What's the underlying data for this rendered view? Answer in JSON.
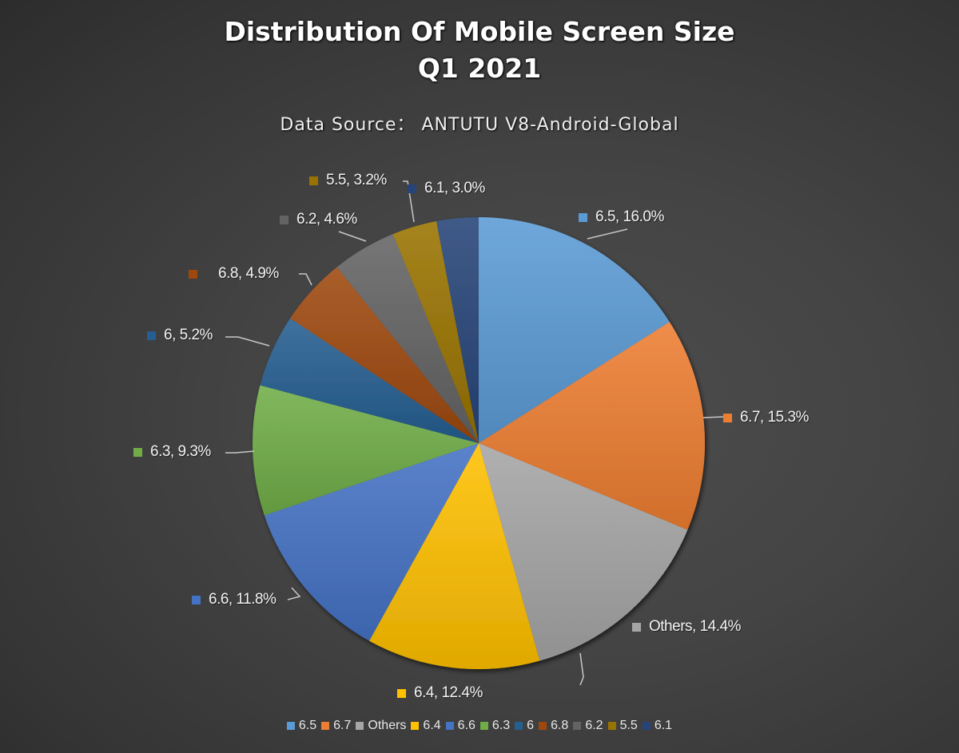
{
  "chart_data": {
    "type": "pie",
    "title": "Distribution Of Mobile Screen Size",
    "title_line2": "Q1 2021",
    "subtitle": "Data Source： ANTUTU V8-Android-Global",
    "categories": [
      "6.5",
      "6.7",
      "Others",
      "6.4",
      "6.6",
      "6.3",
      "6",
      "6.8",
      "6.2",
      "5.5",
      "6.1"
    ],
    "values": [
      16.0,
      15.3,
      14.4,
      12.4,
      11.8,
      9.3,
      5.2,
      4.9,
      4.6,
      3.2,
      3.0
    ],
    "colors": [
      "#5b9bd5",
      "#ed7d31",
      "#a5a5a5",
      "#ffc000",
      "#4472c4",
      "#70ad47",
      "#255e91",
      "#9e480e",
      "#636363",
      "#997300",
      "#264478"
    ],
    "data_labels": [
      "6.5, 16.0%",
      "6.7, 15.3%",
      "Others, 14.4%",
      "6.4, 12.4%",
      "6.6, 11.8%",
      "6.3, 9.3%",
      "6, 5.2%",
      "6.8, 4.9%",
      "6.2, 4.6%",
      "5.5, 3.2%",
      "6.1, 3.0%"
    ],
    "legend_position": "bottom",
    "unit": "%"
  },
  "legend": [
    {
      "label": "6.5",
      "color": "#5b9bd5"
    },
    {
      "label": "6.7",
      "color": "#ed7d31"
    },
    {
      "label": "Others",
      "color": "#a5a5a5"
    },
    {
      "label": "6.4",
      "color": "#ffc000"
    },
    {
      "label": "6.6",
      "color": "#4472c4"
    },
    {
      "label": "6.3",
      "color": "#70ad47"
    },
    {
      "label": "6",
      "color": "#255e91"
    },
    {
      "label": "6.8",
      "color": "#9e480e"
    },
    {
      "label": "6.2",
      "color": "#636363"
    },
    {
      "label": "5.5",
      "color": "#997300"
    },
    {
      "label": "6.1",
      "color": "#264478"
    }
  ]
}
